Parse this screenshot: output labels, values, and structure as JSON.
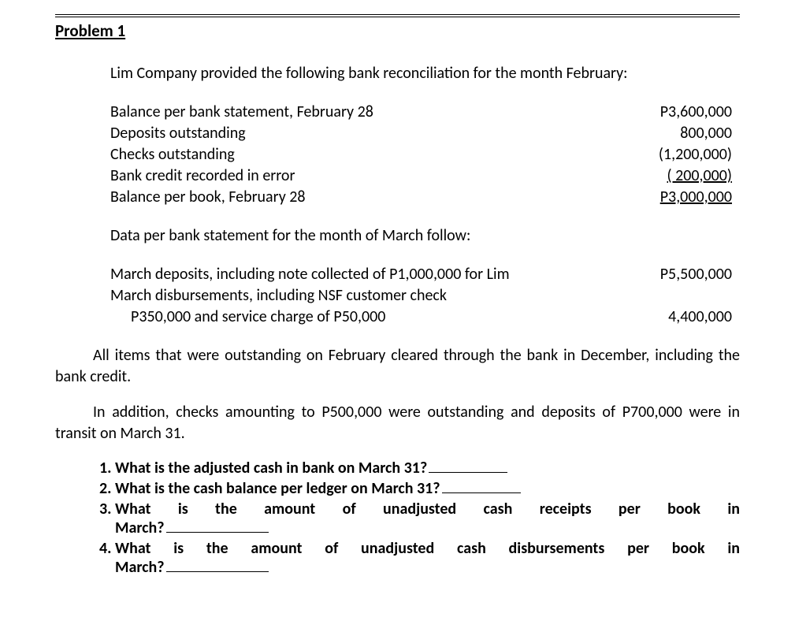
{
  "title": "Problem 1",
  "intro": "Lim Company provided the following bank reconciliation for the month February:",
  "recon": [
    {
      "label": "Balance per bank statement, February 28",
      "value": "P3,600,000",
      "style": "plain"
    },
    {
      "label": "Deposits outstanding",
      "value": "800,000",
      "style": "plain"
    },
    {
      "label": "Checks outstanding",
      "value": "(1,200,000)",
      "style": "plain"
    },
    {
      "label": "Bank credit recorded in error",
      "value": "(   200,000)",
      "style": "underline"
    },
    {
      "label": "Balance per book, February 28",
      "value": "P3,000,000",
      "style": "underline"
    }
  ],
  "data_heading": "Data per bank statement for the month of March follow:",
  "march": [
    {
      "label": "March deposits, including note collected of P1,000,000 for Lim",
      "value": "P5,500,000"
    },
    {
      "label": "March disbursements, including NSF customer check",
      "value": ""
    },
    {
      "label_indent": "P350,000 and service charge of P50,000",
      "value": "4,400,000"
    }
  ],
  "para1": "All items that were outstanding on February cleared through the bank in December, including the bank credit.",
  "para2": "In addition, checks amounting to P500,000 were outstanding and deposits of P700,000 were in transit on March 31.",
  "q1": "What is the adjusted cash in bank on March 31?",
  "q2": "What is the cash balance per ledger on March 31?",
  "q3a": "What is the amount of unadjusted cash receipts per book in",
  "q3b": "March?",
  "q4a": "What is the amount of unadjusted cash disbursements per book in",
  "q4b": "March?"
}
